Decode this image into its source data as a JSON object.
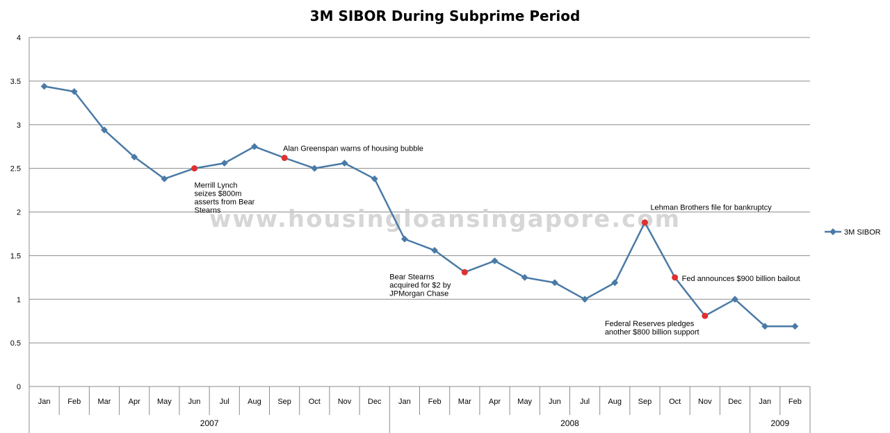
{
  "chart_data": {
    "type": "line",
    "title": "3M SIBOR During Subprime Period",
    "watermark": "www.housingloansingapore.com",
    "ylim": [
      0,
      4
    ],
    "yticks": [
      0,
      0.5,
      1,
      1.5,
      2,
      2.5,
      3,
      3.5,
      4
    ],
    "grid": true,
    "legend_position": "right",
    "line_color": "#4a7aa6",
    "highlight_color": "#e03030",
    "categories": [
      "Jan",
      "Feb",
      "Mar",
      "Apr",
      "May",
      "Jun",
      "Jul",
      "Aug",
      "Sep",
      "Oct",
      "Nov",
      "Dec",
      "Jan",
      "Feb",
      "Mar",
      "Apr",
      "May",
      "Jun",
      "Jul",
      "Aug",
      "Sep",
      "Oct",
      "Nov",
      "Dec",
      "Jan",
      "Feb"
    ],
    "groups": [
      {
        "label": "2007",
        "count": 12
      },
      {
        "label": "2008",
        "count": 12
      },
      {
        "label": "2009",
        "count": 2
      }
    ],
    "series": [
      {
        "name": "3M SIBOR",
        "values": [
          3.44,
          3.38,
          2.94,
          2.63,
          2.38,
          2.5,
          2.56,
          2.75,
          2.62,
          2.5,
          2.56,
          2.38,
          1.69,
          1.56,
          1.31,
          1.44,
          1.25,
          1.19,
          1.0,
          1.19,
          1.88,
          1.25,
          0.81,
          1.0,
          0.69,
          0.69
        ]
      }
    ],
    "annotations": [
      {
        "index": 5,
        "lines": [
          "Merrill Lynch",
          "seizes $800m",
          "asserts from Bear",
          "Stearns"
        ]
      },
      {
        "index": 8,
        "lines": [
          "Alan Greenspan warns of housing bubble"
        ]
      },
      {
        "index": 14,
        "lines": [
          "Bear Stearns",
          "acquired for $2 by",
          "JPMorgan Chase"
        ]
      },
      {
        "index": 20,
        "lines": [
          "Lehman Brothers file for bankruptcy"
        ]
      },
      {
        "index": 21,
        "lines": [
          "Fed announces $900 billion bailout"
        ]
      },
      {
        "index": 22,
        "lines": [
          "Federal Reserves pledges",
          "another $800 billion support"
        ]
      }
    ]
  }
}
